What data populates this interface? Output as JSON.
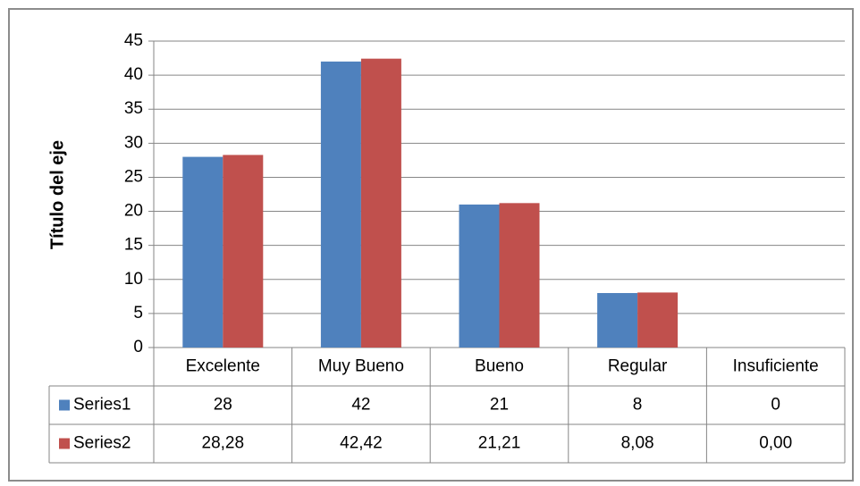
{
  "chart_data": {
    "type": "bar",
    "y_axis_title": "Título del eje",
    "categories": [
      "Excelente",
      "Muy Bueno",
      "Bueno",
      "Regular",
      "Insuficiente"
    ],
    "series": [
      {
        "name": "Series1",
        "color": "#4f81bd",
        "values": [
          28,
          42,
          21,
          8,
          0
        ]
      },
      {
        "name": "Series2",
        "color": "#c0504d",
        "values": [
          28.28,
          42.42,
          21.21,
          8.08,
          0
        ],
        "value_labels": [
          "28,28",
          "42,42",
          "21,21",
          "8,08",
          "0,00"
        ]
      }
    ],
    "ylim": [
      0,
      45
    ],
    "yticks": [
      0,
      5,
      10,
      15,
      20,
      25,
      30,
      35,
      40,
      45
    ],
    "grid": true
  }
}
